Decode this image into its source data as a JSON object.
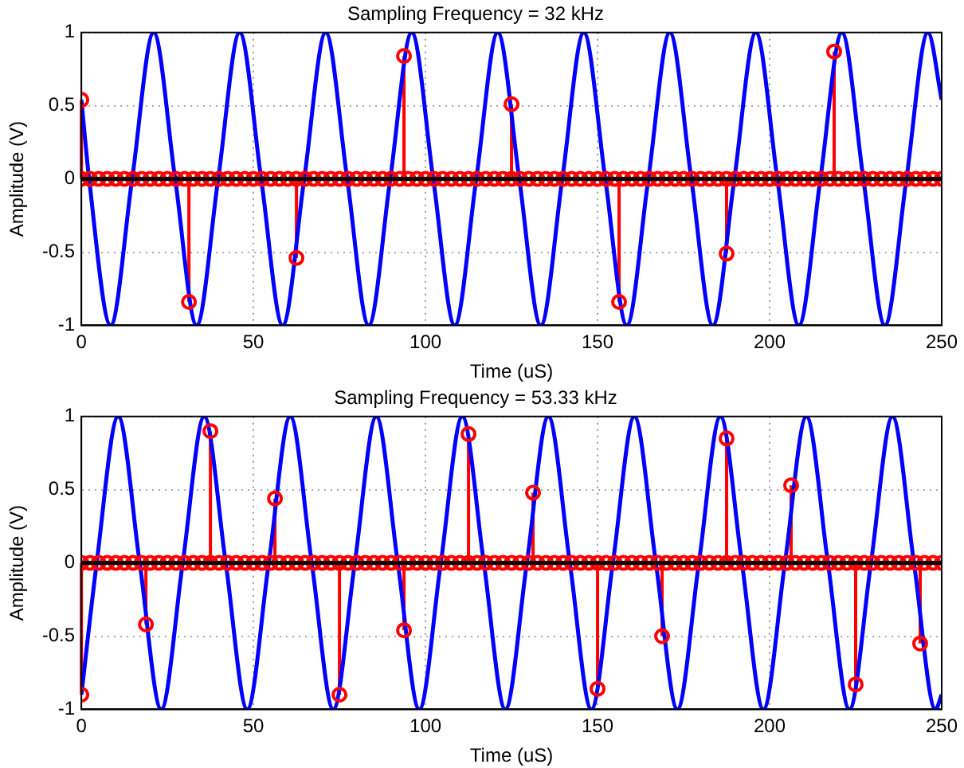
{
  "chart_data": [
    {
      "type": "line",
      "title": "Sampling Frequency = 32 kHz",
      "xlabel": "Time (uS)",
      "ylabel": "Amplitude (V)",
      "xlim": [
        0,
        250
      ],
      "xticks": [
        0,
        50,
        100,
        150,
        200,
        250
      ],
      "ylim": [
        -1,
        1
      ],
      "yticks": [
        -1,
        -0.5,
        0,
        0.5,
        1
      ],
      "grid": true,
      "legend": false,
      "series": [
        {
          "type": "line",
          "color": "#0000ff",
          "marker": "none",
          "line_style": "solid",
          "x": [
            0,
            2.25,
            8.5,
            14.75,
            21,
            27.25,
            33.5,
            39.75,
            46,
            52.25,
            58.5,
            64.75,
            71,
            77.25,
            83.5,
            89.75,
            96,
            102.25,
            108.5,
            114.75,
            121,
            127.25,
            133.5,
            139.75,
            146,
            152.25,
            158.5,
            164.75,
            171,
            177.25,
            183.5,
            189.75,
            196,
            202.25,
            208.5,
            214.75,
            221,
            227.25,
            233.5,
            239.75,
            246,
            250
          ],
          "values": [
            0.54,
            0,
            -1,
            0,
            1,
            0,
            -1,
            0,
            1,
            0,
            -1,
            0,
            1,
            0,
            -1,
            0,
            1,
            0,
            -1,
            0,
            1,
            0,
            -1,
            0,
            1,
            0,
            -1,
            0,
            1,
            0,
            -1,
            0,
            1,
            0,
            -1,
            0,
            1,
            0,
            -1,
            0,
            1,
            0.54
          ]
        },
        {
          "type": "lollipop",
          "color": "#ff0000",
          "marker": "circle",
          "x": [
            0,
            2.5,
            5,
            7.5,
            10,
            12.5,
            15,
            17.5,
            20,
            22.5,
            25,
            27.5,
            30,
            32.5,
            35,
            37.5,
            40,
            42.5,
            45,
            47.5,
            50,
            52.5,
            55,
            57.5,
            60,
            62.5,
            65,
            67.5,
            70,
            72.5,
            75,
            77.5,
            80,
            82.5,
            85,
            87.5,
            90,
            92.5,
            95,
            97.5,
            100,
            102.5,
            105,
            107.5,
            110,
            112.5,
            115,
            117.5,
            120,
            122.5,
            125,
            127.5,
            130,
            132.5,
            135,
            137.5,
            140,
            142.5,
            145,
            147.5,
            150,
            152.5,
            155,
            157.5,
            160,
            162.5,
            165,
            167.5,
            170,
            172.5,
            175,
            177.5,
            180,
            182.5,
            185,
            187.5,
            190,
            192.5,
            195,
            197.5,
            200,
            202.5,
            205,
            207.5,
            210,
            212.5,
            215,
            217.5,
            220,
            222.5,
            225,
            227.5,
            230,
            232.5,
            235,
            237.5,
            240,
            242.5,
            245,
            247.5,
            250
          ],
          "values": [
            0,
            0,
            0,
            0,
            0,
            0,
            0,
            0,
            0,
            0,
            0,
            0,
            0,
            0,
            0,
            0,
            0,
            0,
            0,
            0,
            0,
            0,
            0,
            0,
            0,
            0,
            0,
            0,
            0,
            0,
            0,
            0,
            0,
            0,
            0,
            0,
            0,
            0,
            0,
            0,
            0,
            0,
            0,
            0,
            0,
            0,
            0,
            0,
            0,
            0,
            0,
            0,
            0,
            0,
            0,
            0,
            0,
            0,
            0,
            0,
            0,
            0,
            0,
            0,
            0,
            0,
            0,
            0,
            0,
            0,
            0,
            0,
            0,
            0,
            0,
            0,
            0,
            0,
            0,
            0,
            0,
            0,
            0,
            0,
            0,
            0,
            0,
            0,
            0,
            0,
            0,
            0,
            0,
            0,
            0,
            0,
            0,
            0,
            0,
            0,
            0
          ]
        },
        {
          "type": "lollipop",
          "color": "#ff0000",
          "marker": "circle",
          "x": [
            0,
            31.25,
            62.5,
            93.75,
            125,
            156.25,
            187.5,
            218.75
          ],
          "values": [
            0.54,
            -0.84,
            -0.54,
            0.84,
            0.51,
            -0.84,
            -0.51,
            0.87
          ]
        }
      ],
      "ref_lines": [
        {
          "axis": "y",
          "value": 0,
          "color": "#000000"
        }
      ]
    },
    {
      "type": "line",
      "title": "Sampling Frequency = 53.33 kHz",
      "xlabel": "Time (uS)",
      "ylabel": "Amplitude (V)",
      "xlim": [
        0,
        250
      ],
      "xticks": [
        0,
        50,
        100,
        150,
        200,
        250
      ],
      "ylim": [
        -1,
        1
      ],
      "yticks": [
        -1,
        -0.5,
        0,
        0.5,
        1
      ],
      "grid": true,
      "legend": false,
      "series": [
        {
          "type": "line",
          "color": "#0000ff",
          "marker": "none",
          "line_style": "solid",
          "x": [
            0,
            4.45,
            10.7,
            16.95,
            23.2,
            29.45,
            35.7,
            41.95,
            48.2,
            54.45,
            60.7,
            66.95,
            73.2,
            79.45,
            85.7,
            91.95,
            98.2,
            104.45,
            110.7,
            116.95,
            123.2,
            129.45,
            135.7,
            141.95,
            148.2,
            154.45,
            160.7,
            166.95,
            173.2,
            179.45,
            185.7,
            191.95,
            198.2,
            204.45,
            210.7,
            216.95,
            223.2,
            229.45,
            235.7,
            241.95,
            248.2,
            250
          ],
          "values": [
            -0.9,
            0,
            1,
            0,
            -1,
            0,
            1,
            0,
            -1,
            0,
            1,
            0,
            -1,
            0,
            1,
            0,
            -1,
            0,
            1,
            0,
            -1,
            0,
            1,
            0,
            -1,
            0,
            1,
            0,
            -1,
            0,
            1,
            0,
            -1,
            0,
            1,
            0,
            -1,
            0,
            1,
            0,
            -1,
            -0.9
          ]
        },
        {
          "type": "lollipop",
          "color": "#ff0000",
          "marker": "circle",
          "x": [
            0,
            2.5,
            5,
            7.5,
            10,
            12.5,
            15,
            17.5,
            20,
            22.5,
            25,
            27.5,
            30,
            32.5,
            35,
            37.5,
            40,
            42.5,
            45,
            47.5,
            50,
            52.5,
            55,
            57.5,
            60,
            62.5,
            65,
            67.5,
            70,
            72.5,
            75,
            77.5,
            80,
            82.5,
            85,
            87.5,
            90,
            92.5,
            95,
            97.5,
            100,
            102.5,
            105,
            107.5,
            110,
            112.5,
            115,
            117.5,
            120,
            122.5,
            125,
            127.5,
            130,
            132.5,
            135,
            137.5,
            140,
            142.5,
            145,
            147.5,
            150,
            152.5,
            155,
            157.5,
            160,
            162.5,
            165,
            167.5,
            170,
            172.5,
            175,
            177.5,
            180,
            182.5,
            185,
            187.5,
            190,
            192.5,
            195,
            197.5,
            200,
            202.5,
            205,
            207.5,
            210,
            212.5,
            215,
            217.5,
            220,
            222.5,
            225,
            227.5,
            230,
            232.5,
            235,
            237.5,
            240,
            242.5,
            245,
            247.5,
            250
          ],
          "values": [
            0,
            0,
            0,
            0,
            0,
            0,
            0,
            0,
            0,
            0,
            0,
            0,
            0,
            0,
            0,
            0,
            0,
            0,
            0,
            0,
            0,
            0,
            0,
            0,
            0,
            0,
            0,
            0,
            0,
            0,
            0,
            0,
            0,
            0,
            0,
            0,
            0,
            0,
            0,
            0,
            0,
            0,
            0,
            0,
            0,
            0,
            0,
            0,
            0,
            0,
            0,
            0,
            0,
            0,
            0,
            0,
            0,
            0,
            0,
            0,
            0,
            0,
            0,
            0,
            0,
            0,
            0,
            0,
            0,
            0,
            0,
            0,
            0,
            0,
            0,
            0,
            0,
            0,
            0,
            0,
            0,
            0,
            0,
            0,
            0,
            0,
            0,
            0,
            0,
            0,
            0,
            0,
            0,
            0,
            0,
            0,
            0,
            0,
            0,
            0,
            0
          ]
        },
        {
          "type": "lollipop",
          "color": "#ff0000",
          "marker": "circle",
          "x": [
            0,
            18.75,
            37.5,
            56.25,
            75,
            93.75,
            112.5,
            131.25,
            150,
            168.75,
            187.5,
            206.25,
            225,
            243.75
          ],
          "values": [
            -0.9,
            -0.42,
            0.9,
            0.44,
            -0.9,
            -0.46,
            0.88,
            0.48,
            -0.86,
            -0.5,
            0.85,
            0.53,
            -0.83,
            -0.55
          ]
        }
      ],
      "ref_lines": [
        {
          "axis": "y",
          "value": 0,
          "color": "#000000"
        }
      ]
    }
  ]
}
